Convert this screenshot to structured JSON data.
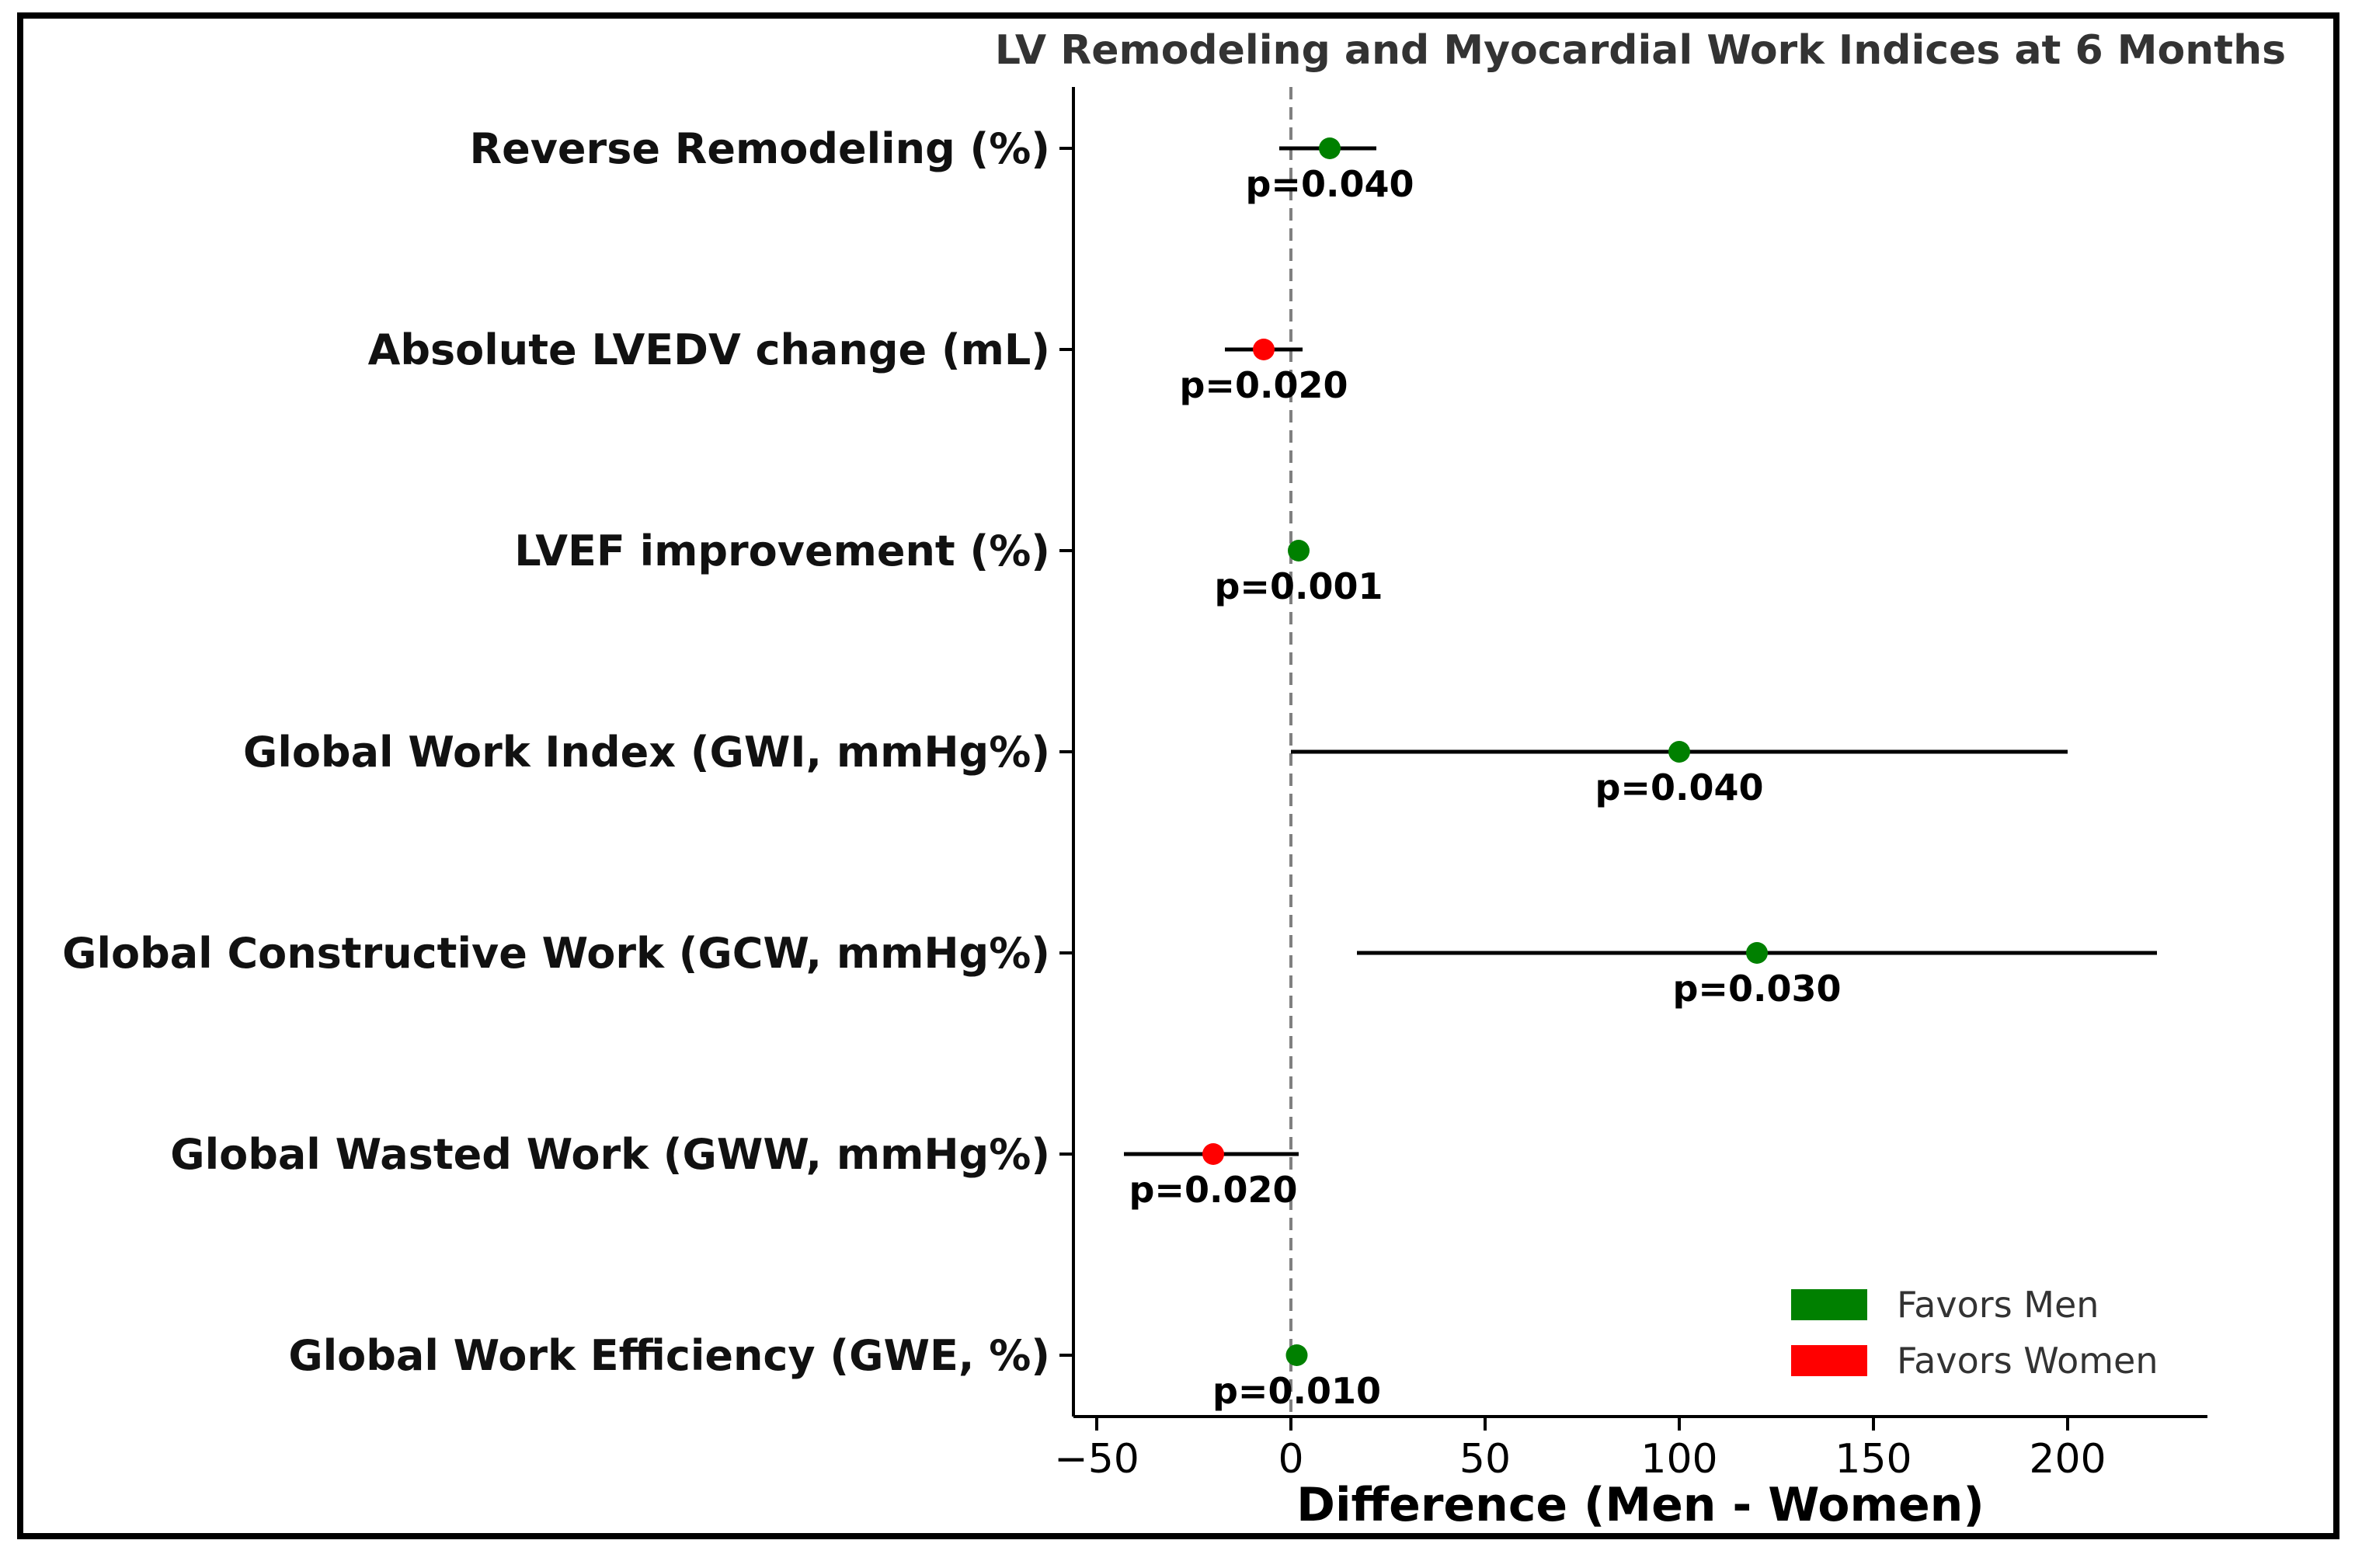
{
  "chart_data": {
    "type": "forest",
    "title": "LV Remodeling and Myocardial Work Indices at 6 Months",
    "xlabel": "Difference (Men - Women)",
    "ylabel": "",
    "xlim": [
      -56,
      236
    ],
    "xticks": [
      -50,
      0,
      50,
      100,
      150,
      200
    ],
    "xtick_labels": [
      "−50",
      "0",
      "50",
      "100",
      "150",
      "200"
    ],
    "reference_line": 0,
    "rows": [
      {
        "label": "Reverse Remodeling (%)",
        "estimate": 10,
        "ci_low": -3,
        "ci_high": 22,
        "p_label": "p=0.040",
        "favors": "men"
      },
      {
        "label": "Absolute LVEDV change (mL)",
        "estimate": -7,
        "ci_low": -17,
        "ci_high": 3,
        "p_label": "p=0.020",
        "favors": "women"
      },
      {
        "label": "LVEF improvement (%)",
        "estimate": 2,
        "ci_low": 1,
        "ci_high": 3,
        "p_label": "p=0.001",
        "favors": "men"
      },
      {
        "label": "Global Work Index (GWI, mmHg%)",
        "estimate": 100,
        "ci_low": 0,
        "ci_high": 200,
        "p_label": "p=0.040",
        "favors": "men"
      },
      {
        "label": "Global Constructive Work (GCW, mmHg%)",
        "estimate": 120,
        "ci_low": 17,
        "ci_high": 223,
        "p_label": "p=0.030",
        "favors": "men"
      },
      {
        "label": "Global Wasted Work (GWW, mmHg%)",
        "estimate": -20,
        "ci_low": -43,
        "ci_high": 2,
        "p_label": "p=0.020",
        "favors": "women"
      },
      {
        "label": "Global Work Efficiency (GWE, %)",
        "estimate": 1.5,
        "ci_low": 1,
        "ci_high": 2,
        "p_label": "p=0.010",
        "favors": "men"
      }
    ],
    "legend": {
      "position": "bottom-right",
      "entries": [
        {
          "label": "Favors Men",
          "color": "#008000"
        },
        {
          "label": "Favors Women",
          "color": "#ff0000"
        }
      ]
    },
    "colors": {
      "men": "#008000",
      "women": "#ff0000",
      "ci_line": "#000000",
      "reference_line": "#808080"
    },
    "grid": false
  }
}
